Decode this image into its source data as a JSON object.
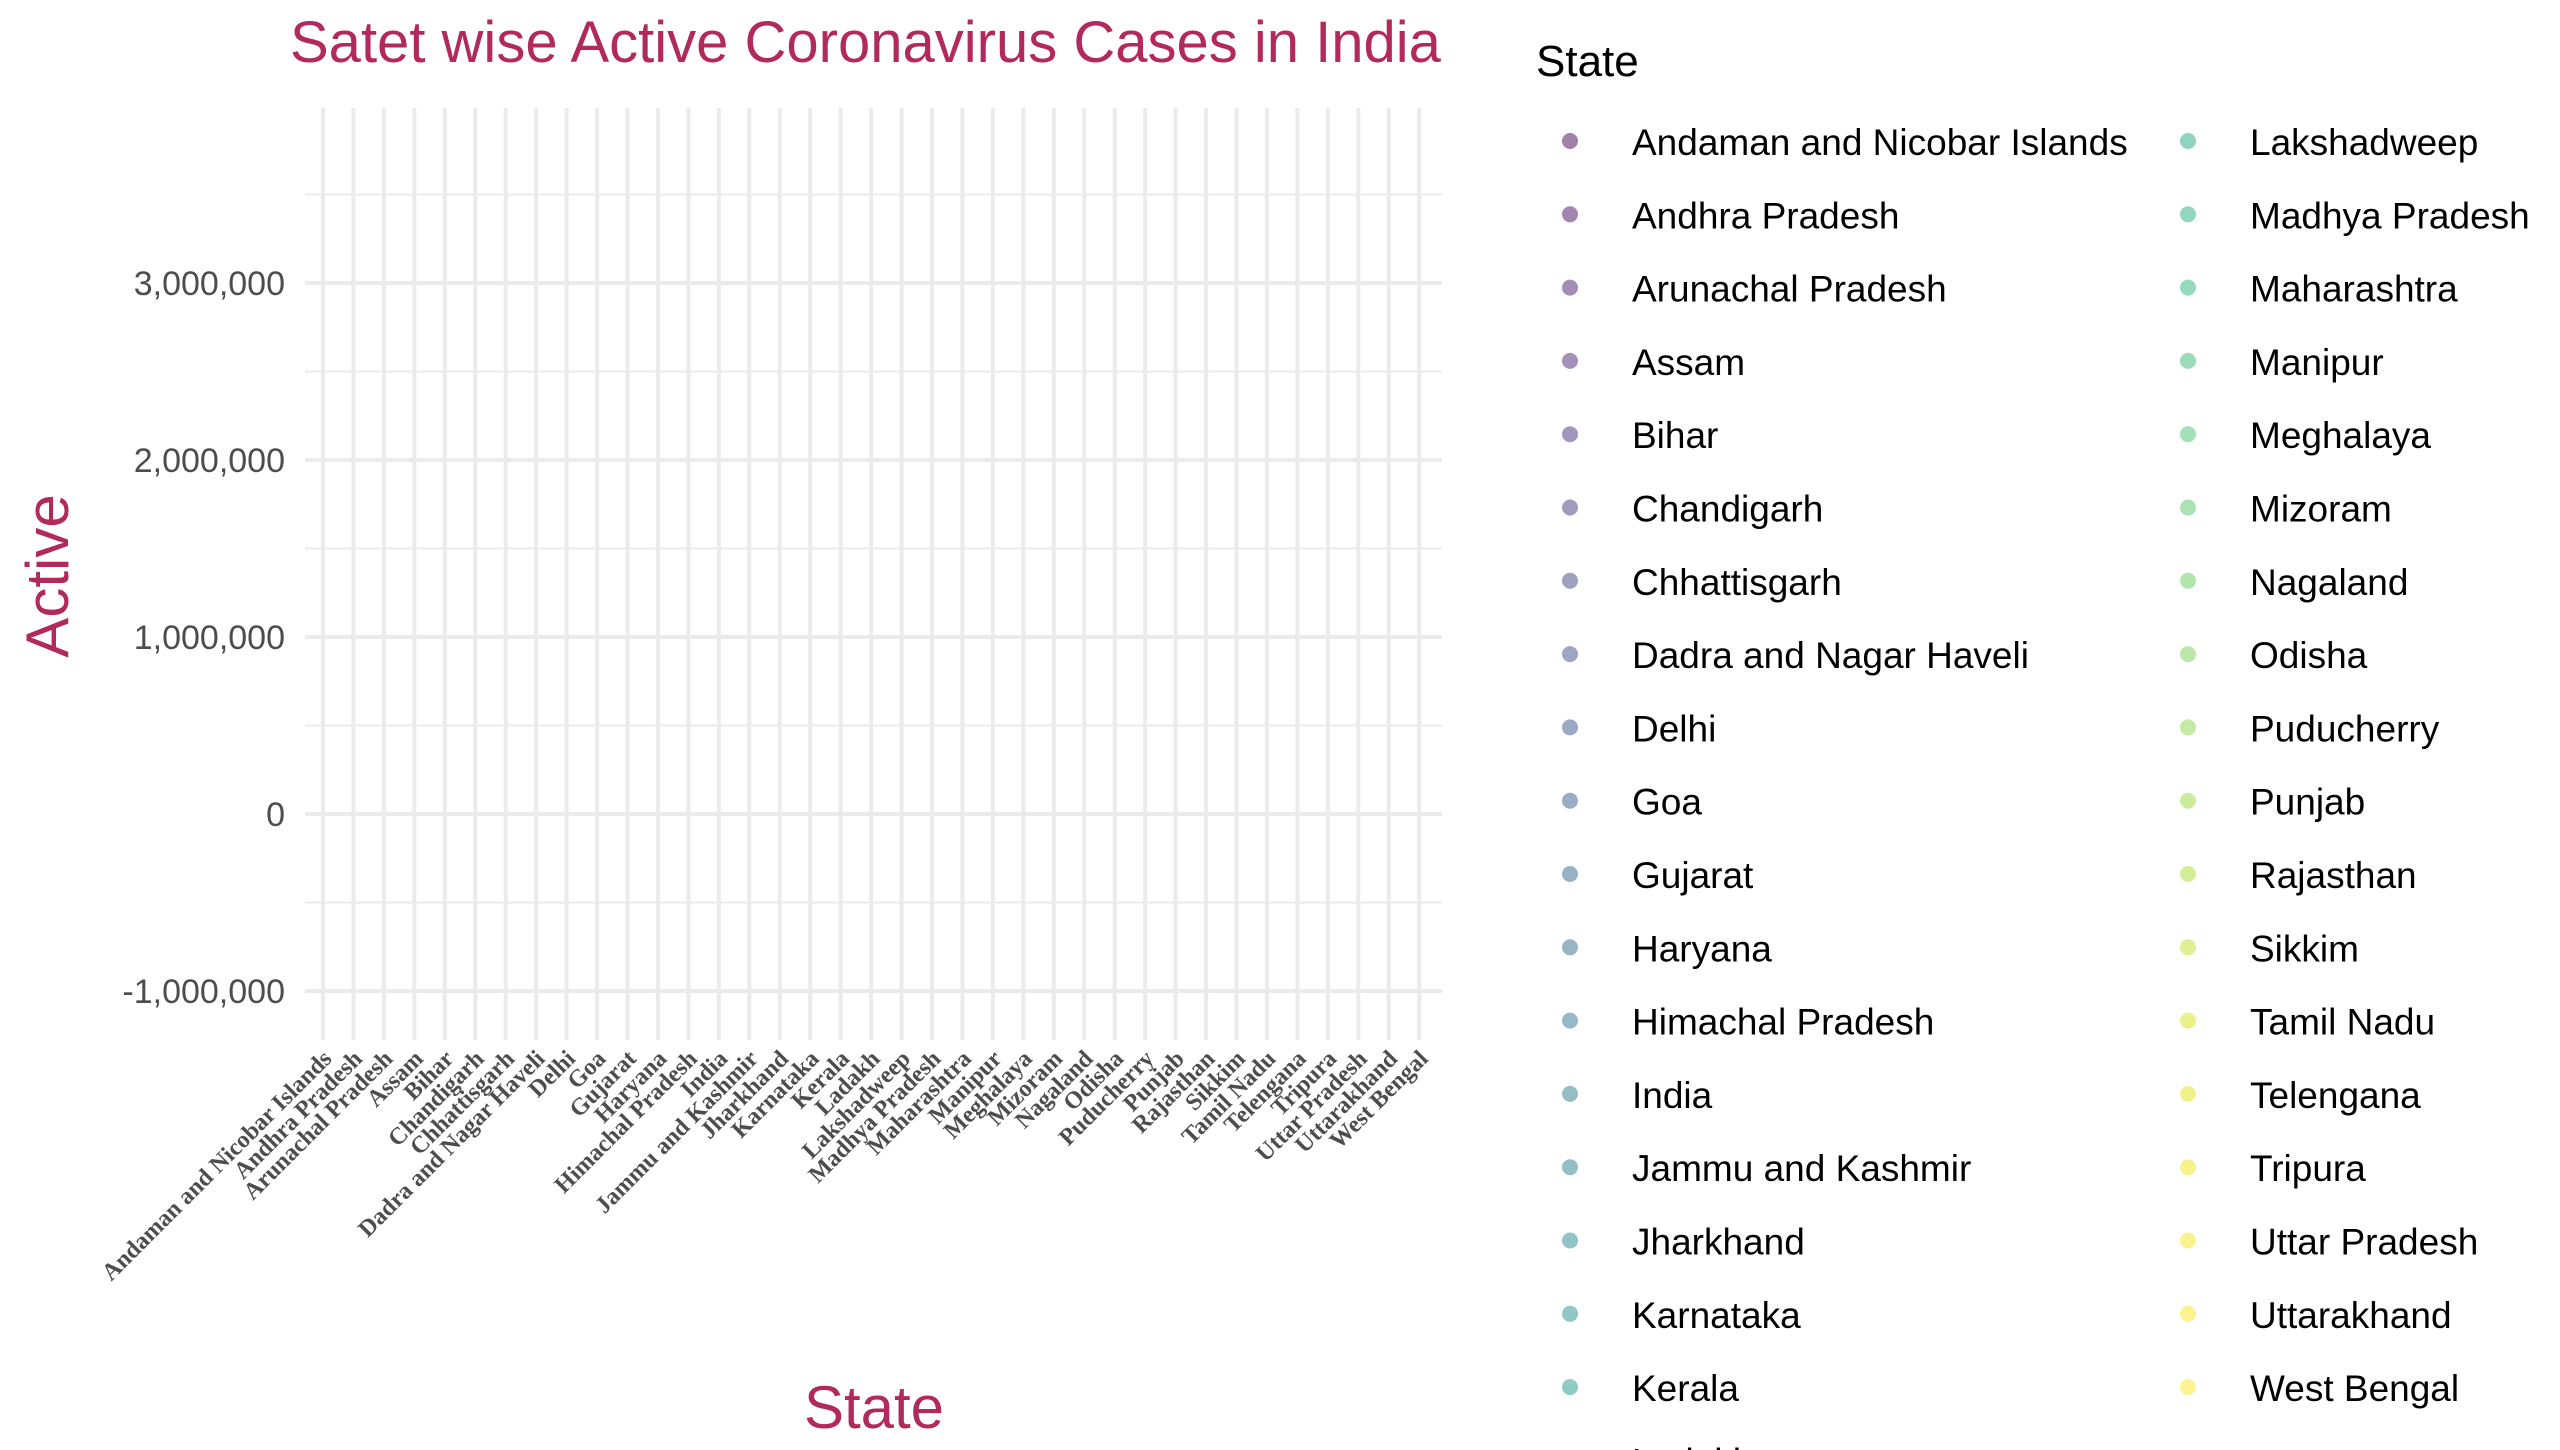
{
  "chart_data": {
    "type": "scatter",
    "title": "Satet wise Active Coronavirus Cases in India",
    "xlabel": "State",
    "ylabel": "Active",
    "ylim": [
      -1300000,
      3990000
    ],
    "yticks": [
      -1000000,
      0,
      1000000,
      2000000,
      3000000
    ],
    "ytick_labels": [
      "-1,000,000",
      "0",
      "1,000,000",
      "2,000,000",
      "3,000,000"
    ],
    "grid": true,
    "legend_title": "State",
    "legend_position": "right",
    "categories": [
      "Andaman and Nicobar Islands",
      "Andhra Pradesh",
      "Arunachal Pradesh",
      "Assam",
      "Bihar",
      "Chandigarh",
      "Chhattisgarh",
      "Dadra and Nagar Haveli",
      "Delhi",
      "Goa",
      "Gujarat",
      "Haryana",
      "Himachal Pradesh",
      "India",
      "Jammu and Kashmir",
      "Jharkhand",
      "Karnataka",
      "Kerala",
      "Ladakh",
      "Lakshadweep",
      "Madhya Pradesh",
      "Maharashtra",
      "Manipur",
      "Meghalaya",
      "Mizoram",
      "Nagaland",
      "Odisha",
      "Puducherry",
      "Punjab",
      "Rajasthan",
      "Sikkim",
      "Tamil Nadu",
      "Telengana",
      "Tripura",
      "Uttar Pradesh",
      "Uttarakhand",
      "West Bengal"
    ],
    "legend_colors": [
      "#440154",
      "#470D60",
      "#48196B",
      "#482475",
      "#472E7C",
      "#453882",
      "#424186",
      "#3E4A89",
      "#3A538B",
      "#365C8D",
      "#32648E",
      "#2F6C8E",
      "#2C738E",
      "#297B8E",
      "#26828E",
      "#238A8D",
      "#21918C",
      "#1F998A",
      "#1FA088",
      "#21A785",
      "#25AE81",
      "#2DB57C",
      "#38BC77",
      "#45C26F",
      "#55C667",
      "#66CB5D",
      "#77D153",
      "#89D548",
      "#9AD93C",
      "#AEDC30",
      "#C1DF24",
      "#D4E21A",
      "#E7E419",
      "#F0E51C",
      "#F6E620",
      "#FAE722",
      "#FDE725"
    ],
    "values": []
  }
}
